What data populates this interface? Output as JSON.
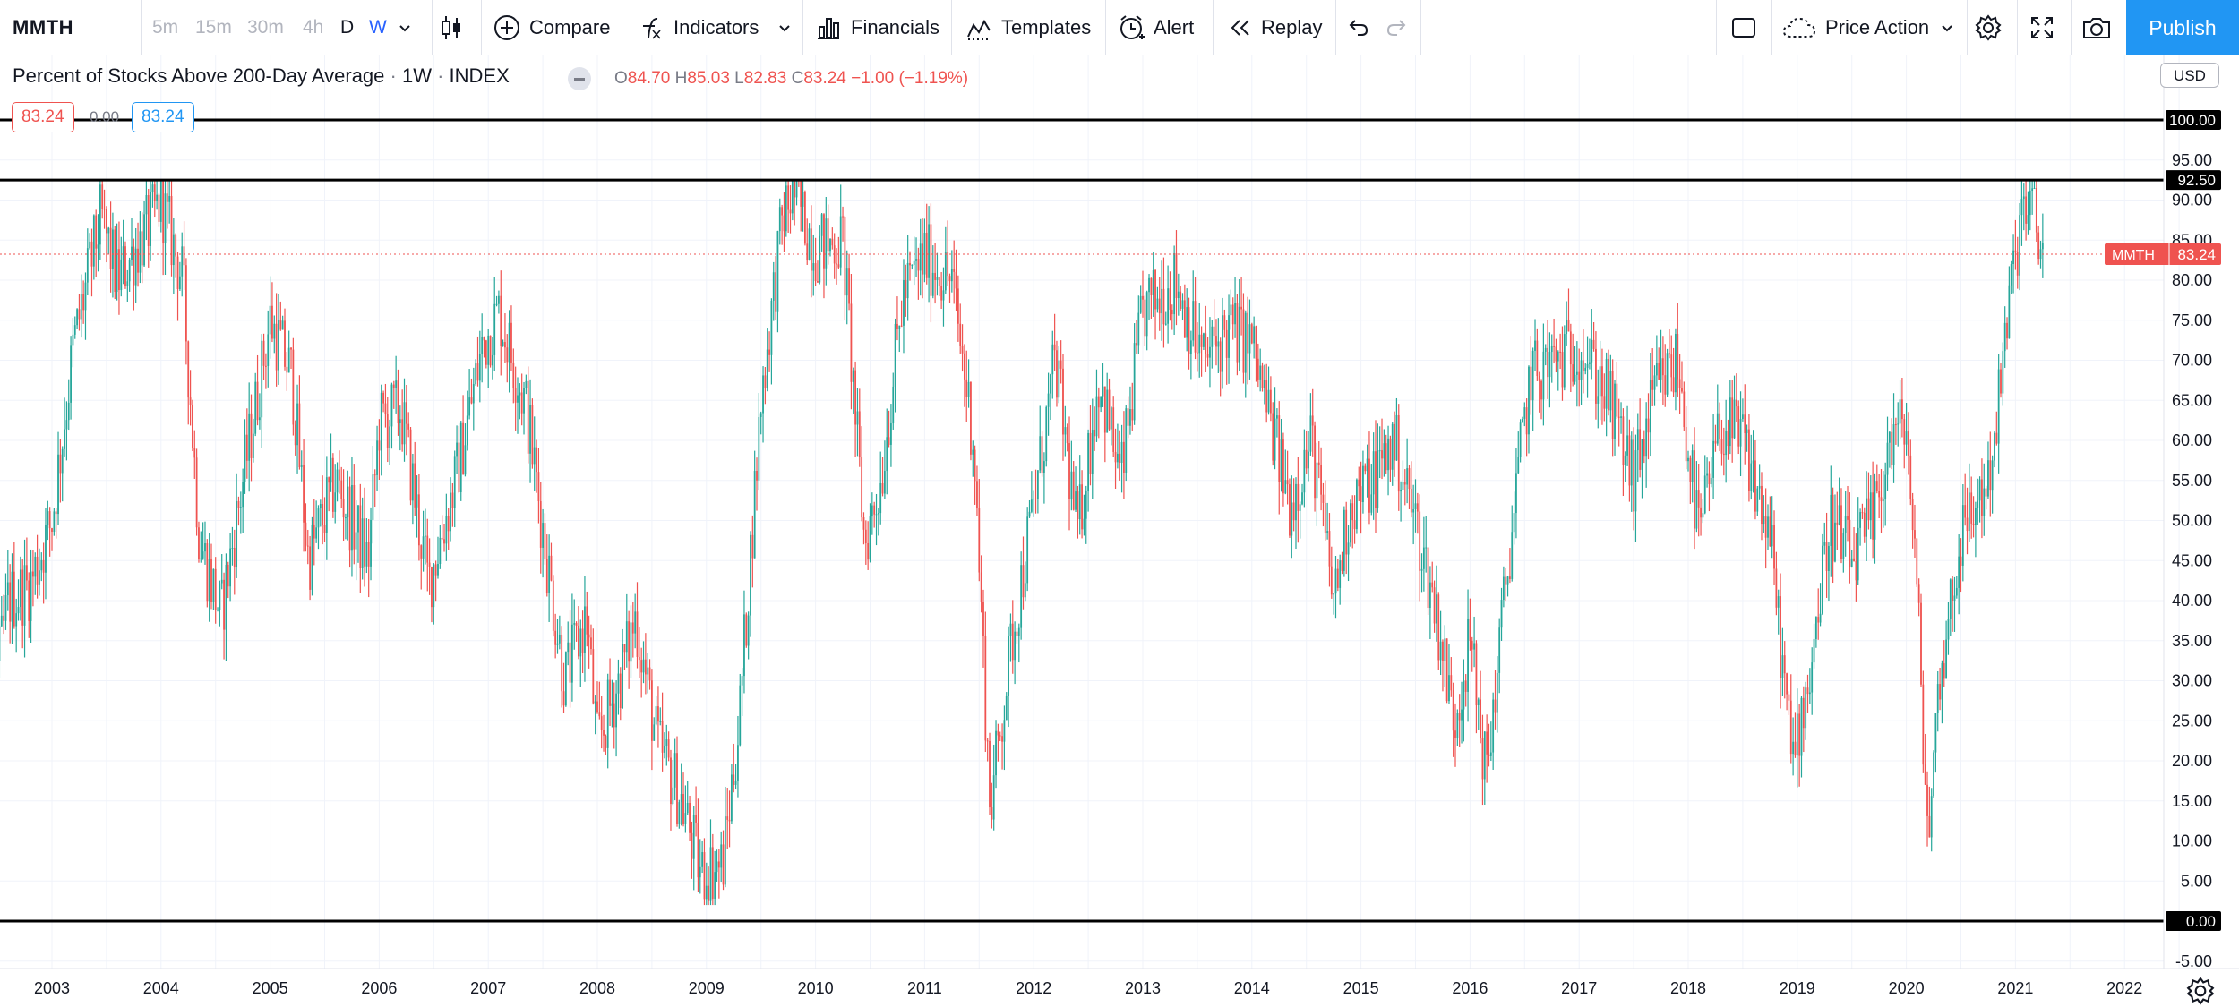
{
  "toolbar": {
    "symbol": "MMTH",
    "intervals": [
      {
        "label": "5m",
        "state": "inactive"
      },
      {
        "label": "15m",
        "state": "inactive"
      },
      {
        "label": "30m",
        "state": "inactive"
      },
      {
        "label": "4h",
        "state": "inactive"
      },
      {
        "label": "D",
        "state": "active"
      },
      {
        "label": "W",
        "state": "selected"
      }
    ],
    "compare_label": "Compare",
    "indicators_label": "Indicators",
    "financials_label": "Financials",
    "templates_label": "Templates",
    "alert_label": "Alert",
    "replay_label": "Replay",
    "layout_label": "Price Action",
    "publish_label": "Publish"
  },
  "legend": {
    "title": "Percent of Stocks Above 200-Day Average",
    "interval": "1W",
    "exchange": "INDEX",
    "open_key": "O",
    "open": "84.70",
    "high_key": "H",
    "high": "85.03",
    "low_key": "L",
    "low": "82.83",
    "close_key": "C",
    "close": "83.24",
    "change": "−1.00 (−1.19%)",
    "value_left": "83.24",
    "value_zero": "0.00",
    "value_right": "83.24"
  },
  "price_scale": {
    "currency": "USD",
    "ticks": [
      "95.00",
      "90.00",
      "85.00",
      "80.00",
      "75.00",
      "70.00",
      "65.00",
      "60.00",
      "55.00",
      "50.00",
      "45.00",
      "40.00",
      "35.00",
      "30.00",
      "25.00",
      "20.00",
      "15.00",
      "10.00",
      "5.00",
      "-5.00"
    ],
    "level_labels": [
      "100.00",
      "92.50",
      "0.00"
    ],
    "last_symbol": "MMTH",
    "last_value": "83.24"
  },
  "colors": {
    "up": "#26a69a",
    "down": "#ef5350",
    "accent": "#2196f3",
    "grid": "#f0f3fa",
    "level_line": "#000000"
  },
  "chart_data": {
    "type": "candlestick",
    "x_labels": [
      "2003",
      "2004",
      "2005",
      "2006",
      "2007",
      "2008",
      "2009",
      "2010",
      "2011",
      "2012",
      "2013",
      "2014",
      "2015",
      "2016",
      "2017",
      "2018",
      "2019",
      "2020",
      "2021",
      "2022"
    ],
    "ylim": [
      -7,
      106
    ],
    "horizontal_levels": [
      100,
      92.5,
      0
    ],
    "last_value": 83.24,
    "path_anchors": [
      [
        2002.0,
        28
      ],
      [
        2002.4,
        22
      ],
      [
        2002.6,
        40
      ],
      [
        2002.8,
        42
      ],
      [
        2003.0,
        50
      ],
      [
        2003.2,
        72
      ],
      [
        2003.45,
        88
      ],
      [
        2003.6,
        80
      ],
      [
        2003.9,
        87
      ],
      [
        2004.0,
        90
      ],
      [
        2004.2,
        80
      ],
      [
        2004.35,
        48
      ],
      [
        2004.55,
        38
      ],
      [
        2004.75,
        55
      ],
      [
        2005.0,
        75
      ],
      [
        2005.2,
        68
      ],
      [
        2005.35,
        45
      ],
      [
        2005.6,
        55
      ],
      [
        2005.9,
        45
      ],
      [
        2006.0,
        62
      ],
      [
        2006.2,
        64
      ],
      [
        2006.45,
        42
      ],
      [
        2006.7,
        55
      ],
      [
        2006.95,
        72
      ],
      [
        2007.1,
        76
      ],
      [
        2007.35,
        64
      ],
      [
        2007.55,
        44
      ],
      [
        2007.7,
        30
      ],
      [
        2007.9,
        38
      ],
      [
        2008.0,
        22
      ],
      [
        2008.2,
        30
      ],
      [
        2008.35,
        38
      ],
      [
        2008.55,
        22
      ],
      [
        2008.75,
        16
      ],
      [
        2008.95,
        6
      ],
      [
        2009.15,
        7
      ],
      [
        2009.3,
        25
      ],
      [
        2009.5,
        65
      ],
      [
        2009.7,
        88
      ],
      [
        2009.8,
        91
      ],
      [
        2010.0,
        84
      ],
      [
        2010.25,
        85
      ],
      [
        2010.45,
        47
      ],
      [
        2010.6,
        55
      ],
      [
        2010.8,
        78
      ],
      [
        2011.0,
        83
      ],
      [
        2011.25,
        80
      ],
      [
        2011.45,
        60
      ],
      [
        2011.6,
        14
      ],
      [
        2011.8,
        35
      ],
      [
        2012.0,
        52
      ],
      [
        2012.2,
        70
      ],
      [
        2012.4,
        48
      ],
      [
        2012.6,
        68
      ],
      [
        2012.8,
        55
      ],
      [
        2013.0,
        76
      ],
      [
        2013.3,
        80
      ],
      [
        2013.55,
        70
      ],
      [
        2013.8,
        74
      ],
      [
        2014.0,
        72
      ],
      [
        2014.35,
        52
      ],
      [
        2014.55,
        60
      ],
      [
        2014.75,
        40
      ],
      [
        2014.9,
        52
      ],
      [
        2015.1,
        55
      ],
      [
        2015.3,
        60
      ],
      [
        2015.5,
        50
      ],
      [
        2015.7,
        38
      ],
      [
        2015.85,
        25
      ],
      [
        2016.0,
        35
      ],
      [
        2016.15,
        18
      ],
      [
        2016.35,
        45
      ],
      [
        2016.55,
        68
      ],
      [
        2016.8,
        70
      ],
      [
        2017.0,
        72
      ],
      [
        2017.25,
        66
      ],
      [
        2017.5,
        55
      ],
      [
        2017.7,
        66
      ],
      [
        2017.9,
        70
      ],
      [
        2018.1,
        48
      ],
      [
        2018.3,
        62
      ],
      [
        2018.5,
        60
      ],
      [
        2018.75,
        48
      ],
      [
        2018.95,
        20
      ],
      [
        2019.1,
        30
      ],
      [
        2019.3,
        50
      ],
      [
        2019.5,
        45
      ],
      [
        2019.7,
        50
      ],
      [
        2019.85,
        60
      ],
      [
        2020.0,
        62
      ],
      [
        2020.1,
        40
      ],
      [
        2020.2,
        10
      ],
      [
        2020.3,
        30
      ],
      [
        2020.5,
        48
      ],
      [
        2020.75,
        55
      ],
      [
        2020.85,
        65
      ],
      [
        2020.95,
        78
      ],
      [
        2021.05,
        88
      ],
      [
        2021.15,
        89
      ],
      [
        2021.25,
        83
      ]
    ]
  }
}
